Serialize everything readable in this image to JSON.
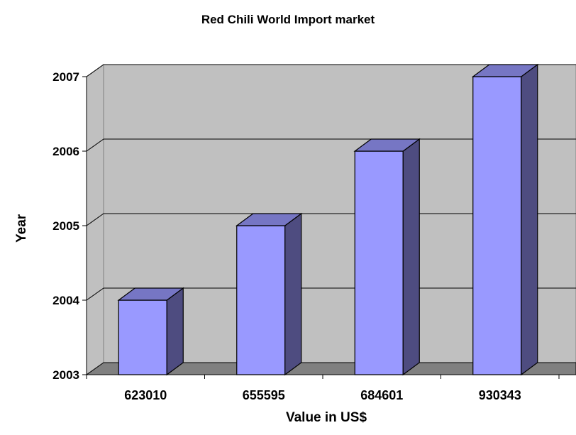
{
  "chart_data": {
    "type": "bar",
    "title": "Red Chili World Import market",
    "xlabel": "Value in US$",
    "ylabel": "Year",
    "categories": [
      "623010",
      "655595",
      "684601",
      "930343"
    ],
    "values": [
      2004,
      2005,
      2006,
      2007
    ],
    "ylim": [
      2003,
      2007
    ],
    "yticks": [
      "2003",
      "2004",
      "2005",
      "2006",
      "2007"
    ],
    "style": "3d-column",
    "grid": true,
    "colors": {
      "bar_front": "#9999ff",
      "bar_side": "#4e4c80",
      "bar_top": "#7676c4",
      "wall": "#c0c0c0",
      "floor": "#808080",
      "gridline": "#000000"
    }
  }
}
